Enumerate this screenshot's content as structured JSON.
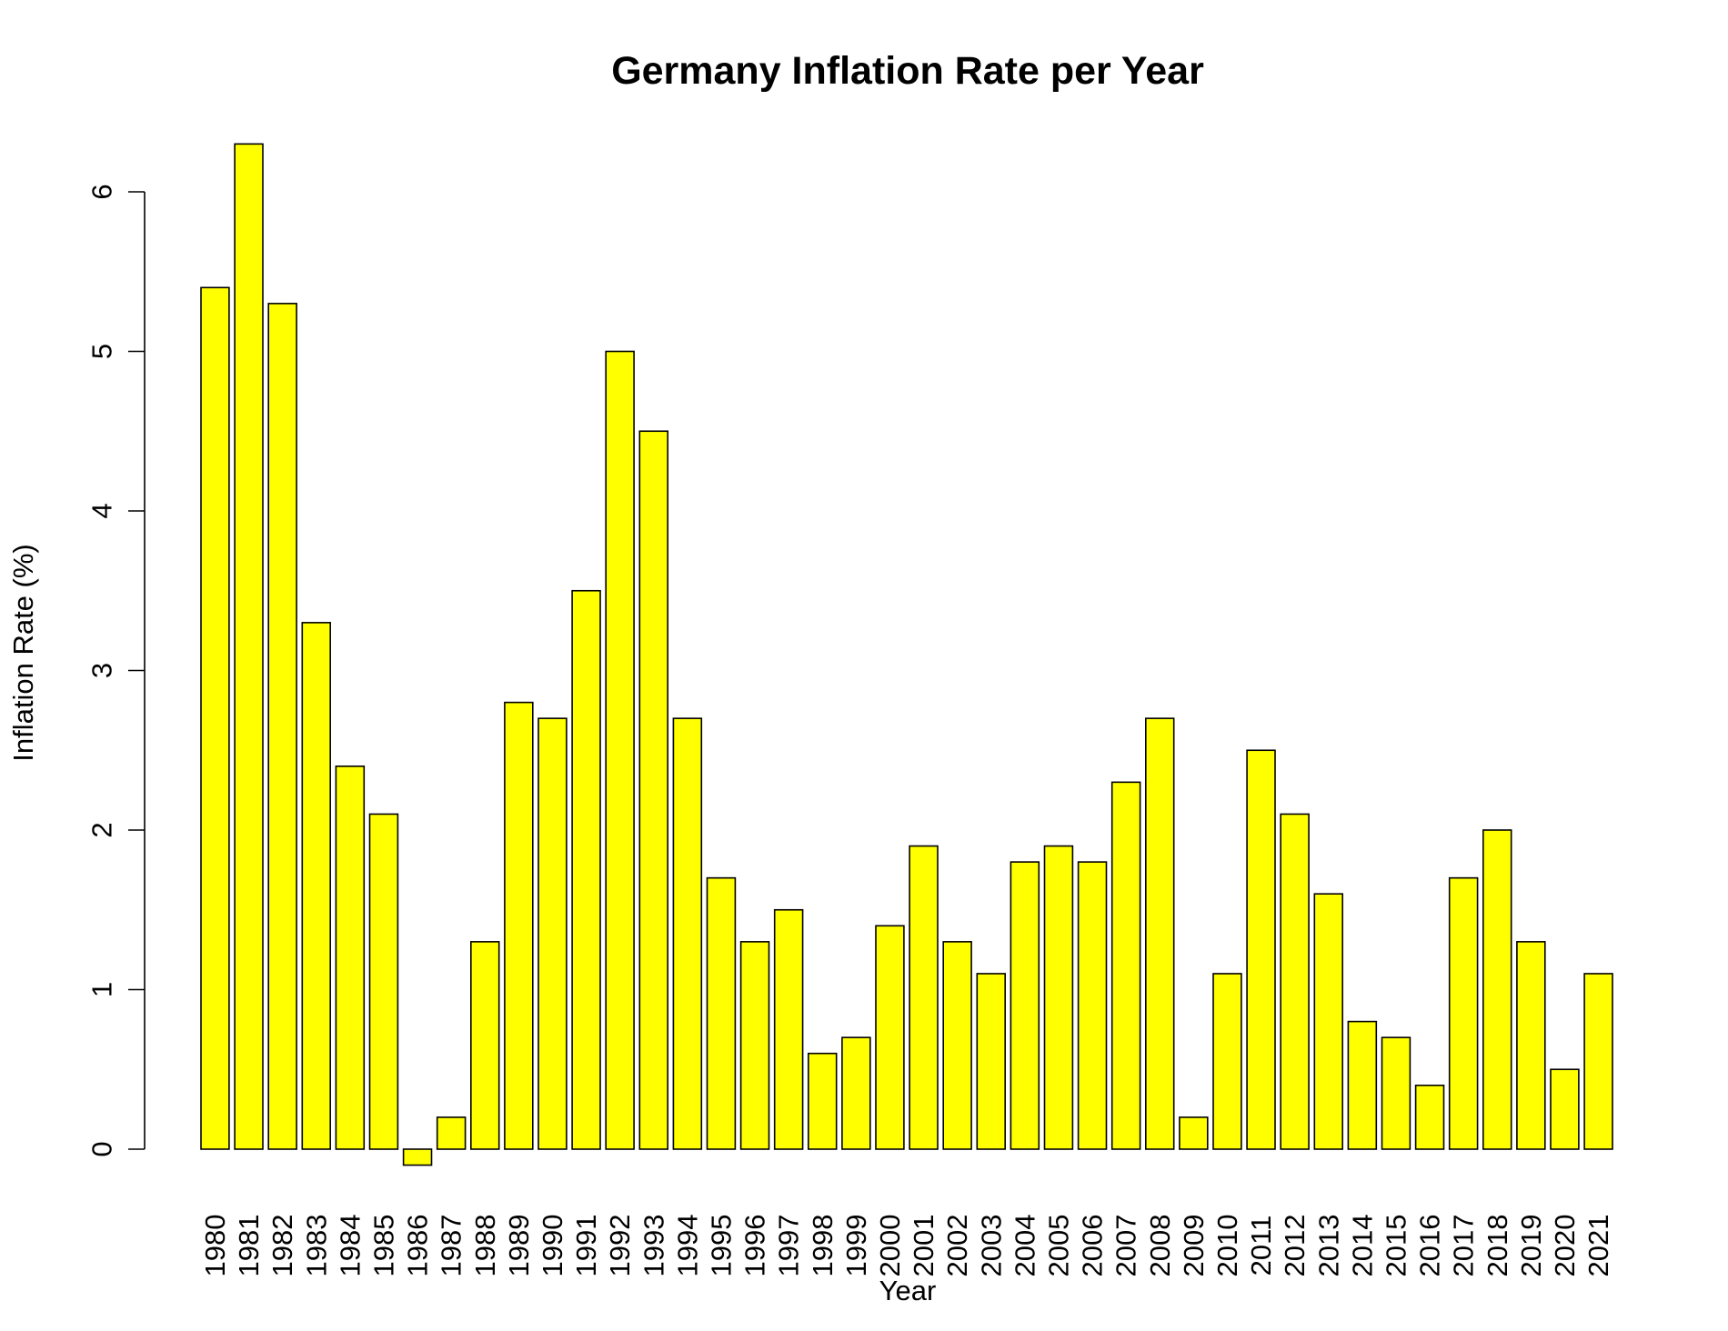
{
  "chart_data": {
    "type": "bar",
    "title": "Germany Inflation Rate per Year",
    "xlabel": "Year",
    "ylabel": "Inflation Rate (%)",
    "ylim": [
      -0.1,
      6.3
    ],
    "yticks": [
      0,
      1,
      2,
      3,
      4,
      5,
      6
    ],
    "bar_color": "#ffff00",
    "border_color": "#000000",
    "grid": false,
    "categories": [
      "1980",
      "1981",
      "1982",
      "1983",
      "1984",
      "1985",
      "1986",
      "1987",
      "1988",
      "1989",
      "1990",
      "1991",
      "1992",
      "1993",
      "1994",
      "1995",
      "1996",
      "1997",
      "1998",
      "1999",
      "2000",
      "2001",
      "2002",
      "2003",
      "2004",
      "2005",
      "2006",
      "2007",
      "2008",
      "2009",
      "2010",
      "2011",
      "2012",
      "2013",
      "2014",
      "2015",
      "2016",
      "2017",
      "2018",
      "2019",
      "2020",
      "2021"
    ],
    "values": [
      5.4,
      6.3,
      5.3,
      3.3,
      2.4,
      2.1,
      -0.1,
      0.2,
      1.3,
      2.8,
      2.7,
      3.5,
      5.0,
      4.5,
      2.7,
      1.7,
      1.3,
      1.5,
      0.6,
      0.7,
      1.4,
      1.9,
      1.3,
      1.1,
      1.8,
      1.9,
      1.8,
      2.3,
      2.7,
      0.2,
      1.1,
      2.5,
      2.1,
      1.6,
      0.8,
      0.7,
      0.4,
      1.7,
      2.0,
      1.3,
      0.5,
      1.1
    ]
  }
}
